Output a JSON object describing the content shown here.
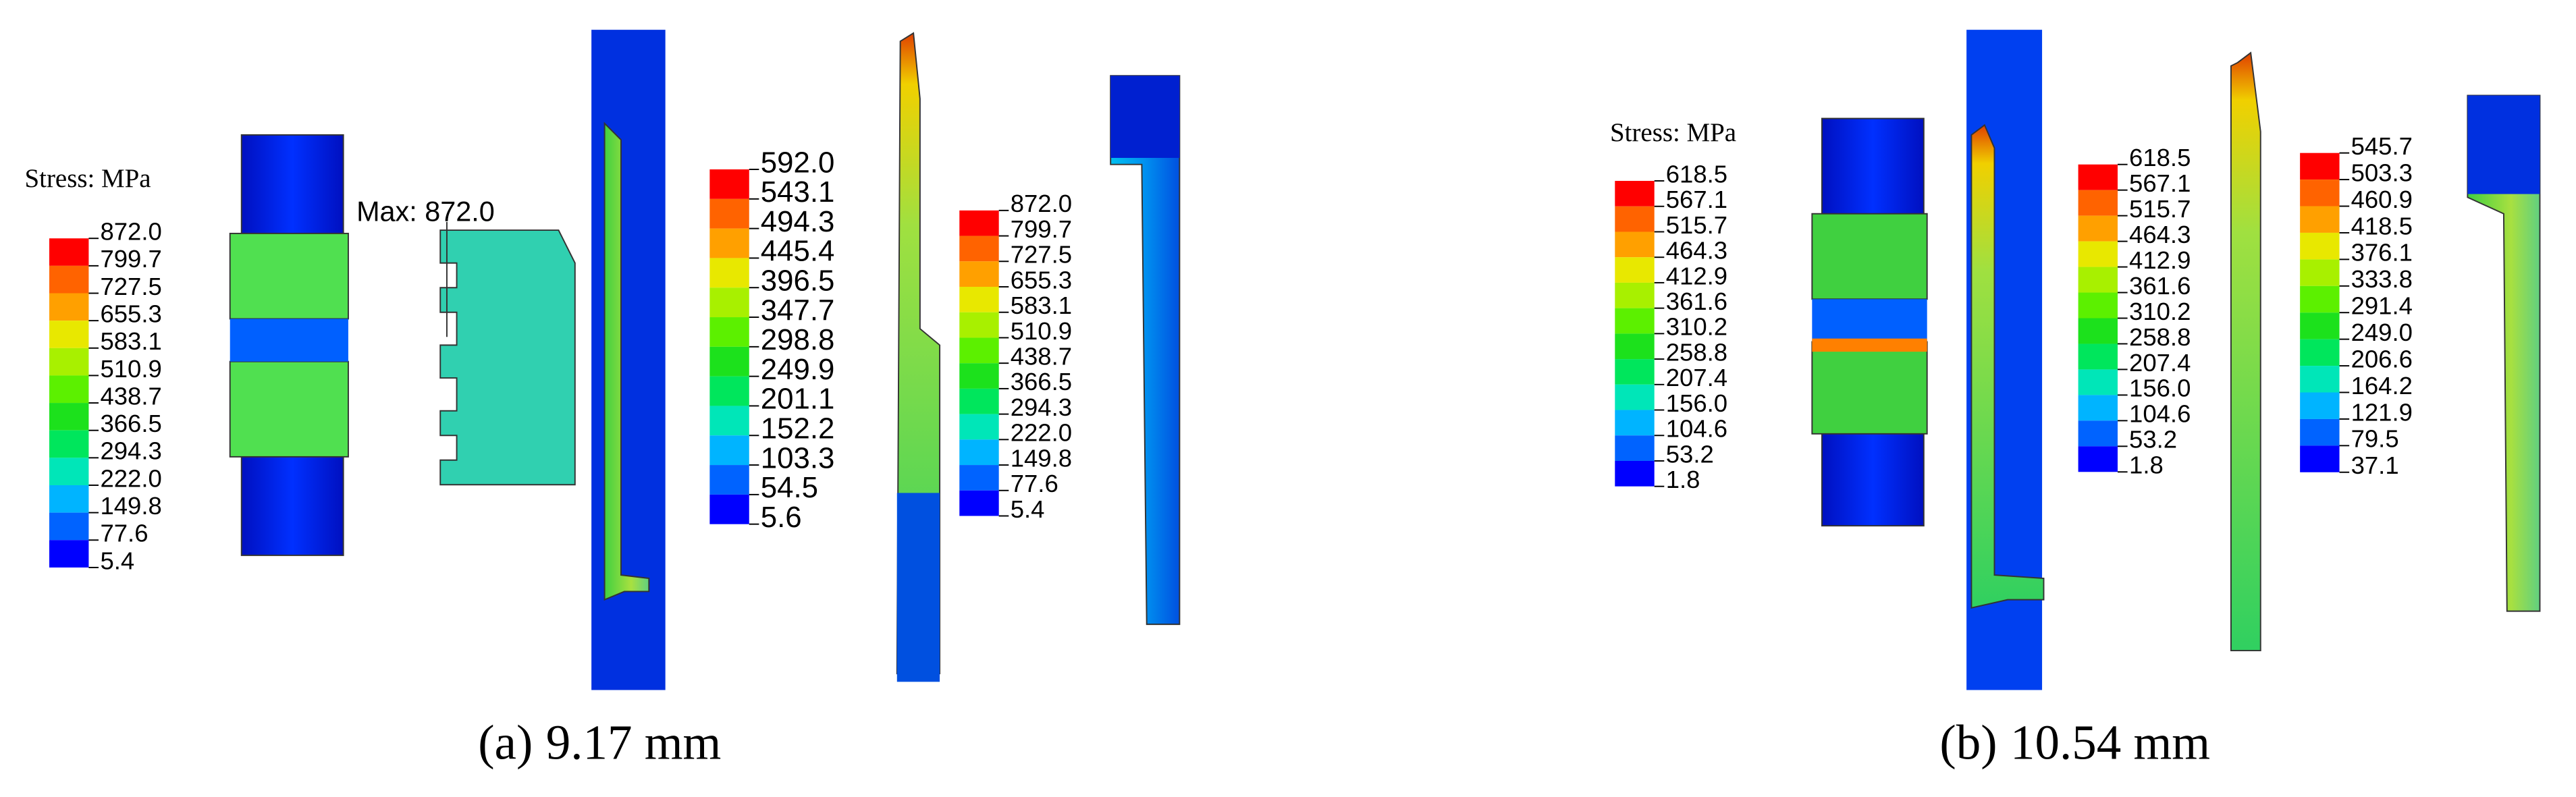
{
  "panels": [
    {
      "label": "(a)",
      "caption": "9.17 mm",
      "annotation": "Max: 872.0",
      "legends": [
        {
          "title": "Stress: MPa",
          "values": [
            "872.0",
            "799.7",
            "727.5",
            "655.3",
            "583.1",
            "510.9",
            "438.7",
            "366.5",
            "294.3",
            "222.0",
            "149.8",
            "77.6",
            "5.4"
          ]
        },
        {
          "values": [
            "592.0",
            "543.1",
            "494.3",
            "445.4",
            "396.5",
            "347.7",
            "298.8",
            "249.9",
            "201.1",
            "152.2",
            "103.3",
            "54.5",
            "5.6"
          ]
        },
        {
          "values": [
            "872.0",
            "799.7",
            "727.5",
            "655.3",
            "583.1",
            "510.9",
            "438.7",
            "366.5",
            "294.3",
            "222.0",
            "149.8",
            "77.6",
            "5.4"
          ]
        }
      ]
    },
    {
      "label": "(b)",
      "caption": "10.54 mm",
      "legends": [
        {
          "title": "Stress: MPa",
          "values": [
            "618.5",
            "567.1",
            "515.7",
            "464.3",
            "412.9",
            "361.6",
            "310.2",
            "258.8",
            "207.4",
            "156.0",
            "104.6",
            "53.2",
            "1.8"
          ]
        },
        {
          "values": [
            "618.5",
            "567.1",
            "515.7",
            "464.3",
            "412.9",
            "361.6",
            "310.2",
            "258.8",
            "207.4",
            "156.0",
            "104.6",
            "53.2",
            "1.8"
          ]
        },
        {
          "values": [
            "545.7",
            "503.3",
            "460.9",
            "418.5",
            "376.1",
            "333.8",
            "291.4",
            "249.0",
            "206.6",
            "164.2",
            "121.9",
            "79.5",
            "37.1"
          ]
        }
      ]
    }
  ]
}
